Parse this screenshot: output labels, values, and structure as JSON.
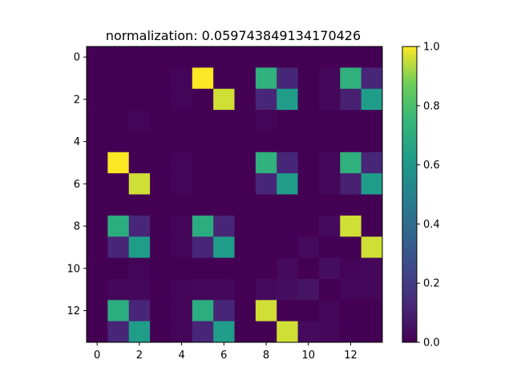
{
  "chart_data": {
    "type": "heatmap",
    "title": "normalization:  0.059743849134170426",
    "xlabel": "",
    "ylabel": "",
    "rows": 14,
    "cols": 14,
    "x_ticks": [
      0,
      2,
      4,
      6,
      8,
      10,
      12
    ],
    "y_ticks": [
      0,
      2,
      4,
      6,
      8,
      10,
      12
    ],
    "colormap": "viridis",
    "vmin": 0.0,
    "vmax": 1.0,
    "colorbar_ticks": [
      "0.0",
      "0.2",
      "0.4",
      "0.6",
      "0.8",
      "1.0"
    ],
    "values": [
      [
        0.0,
        0.0,
        0.0,
        0.0,
        0.0,
        0.0,
        0.0,
        0.0,
        0.0,
        0.0,
        0.0,
        0.0,
        0.0,
        0.0
      ],
      [
        0.0,
        0.0,
        0.0,
        0.0,
        0.01,
        1.0,
        0.0,
        0.0,
        0.72,
        0.12,
        0.0,
        0.02,
        0.72,
        0.12
      ],
      [
        0.0,
        0.0,
        0.0,
        0.0,
        0.01,
        0.0,
        0.96,
        0.0,
        0.12,
        0.62,
        0.0,
        0.02,
        0.1,
        0.62
      ],
      [
        0.0,
        0.0,
        0.01,
        0.0,
        0.0,
        0.0,
        0.0,
        0.0,
        0.01,
        0.0,
        0.0,
        0.0,
        0.0,
        0.0
      ],
      [
        0.0,
        0.0,
        0.0,
        0.0,
        0.0,
        0.0,
        0.0,
        0.0,
        0.0,
        0.0,
        0.0,
        0.0,
        0.0,
        0.0
      ],
      [
        0.0,
        1.0,
        0.0,
        0.0,
        0.01,
        0.0,
        0.0,
        0.0,
        0.72,
        0.12,
        0.0,
        0.02,
        0.72,
        0.12
      ],
      [
        0.0,
        0.0,
        0.96,
        0.0,
        0.01,
        0.0,
        0.0,
        0.0,
        0.12,
        0.62,
        0.0,
        0.02,
        0.1,
        0.62
      ],
      [
        0.0,
        0.0,
        0.0,
        0.0,
        0.0,
        0.0,
        0.0,
        0.0,
        0.0,
        0.0,
        0.0,
        0.0,
        0.0,
        0.0
      ],
      [
        0.0,
        0.7,
        0.12,
        0.0,
        0.01,
        0.7,
        0.12,
        0.0,
        0.0,
        0.0,
        0.0,
        0.03,
        0.96,
        0.0
      ],
      [
        0.0,
        0.12,
        0.62,
        0.0,
        0.01,
        0.12,
        0.62,
        0.0,
        0.0,
        0.0,
        0.03,
        0.0,
        0.0,
        0.96
      ],
      [
        0.0,
        0.0,
        0.01,
        0.0,
        0.0,
        0.0,
        0.0,
        0.0,
        0.0,
        0.03,
        0.0,
        0.04,
        0.01,
        0.02
      ],
      [
        0.0,
        0.02,
        0.02,
        0.0,
        0.01,
        0.02,
        0.02,
        0.0,
        0.03,
        0.04,
        0.06,
        0.0,
        0.02,
        0.02
      ],
      [
        0.0,
        0.7,
        0.12,
        0.0,
        0.01,
        0.7,
        0.12,
        0.0,
        0.96,
        0.0,
        0.0,
        0.02,
        0.0,
        0.0
      ],
      [
        0.0,
        0.12,
        0.62,
        0.0,
        0.01,
        0.12,
        0.62,
        0.0,
        0.0,
        0.96,
        0.03,
        0.02,
        0.0,
        0.0
      ]
    ]
  }
}
